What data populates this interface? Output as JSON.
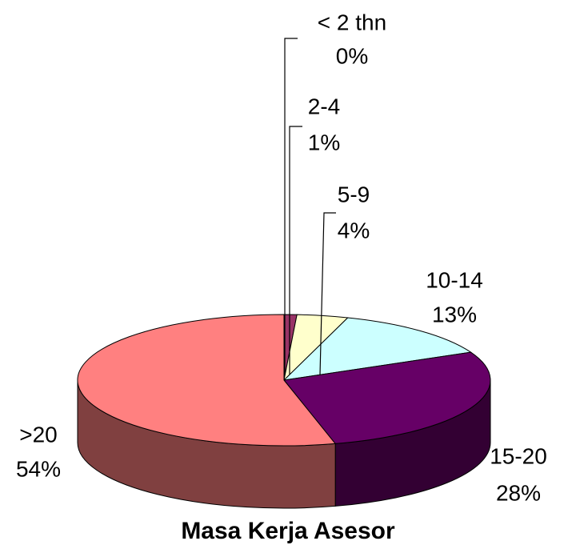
{
  "chart_data": {
    "type": "pie3d",
    "title": "Masa Kerja Asesor",
    "categories": [
      "< 2 thn",
      "2-4",
      "5-9",
      "10-14",
      "15-20",
      ">20"
    ],
    "values": [
      0,
      1,
      4,
      13,
      28,
      54
    ],
    "value_labels": [
      "0%",
      "1%",
      "4%",
      "13%",
      "28%",
      "54%"
    ],
    "colors": [
      "#9999ff",
      "#993366",
      "#ffffcc",
      "#ccffff",
      "#660066",
      "#ff8080"
    ]
  }
}
